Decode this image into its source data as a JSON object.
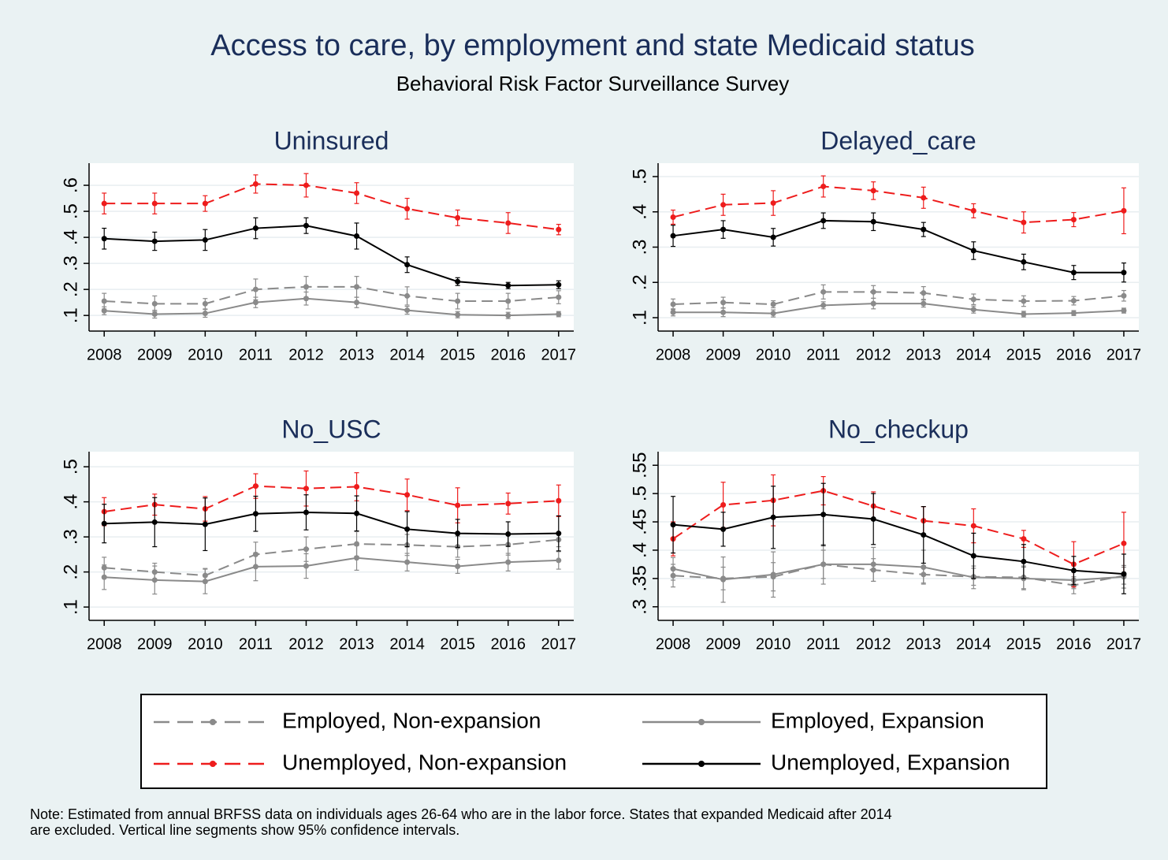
{
  "title": "Access to care, by employment and state Medicaid status",
  "subtitle": "Behavioral Risk Factor Surveillance Survey",
  "note": [
    "Note: Estimated from annual BRFSS data on individuals ages 26-64 who are in the labor force. States that expanded Medicaid after 2014",
    "are excluded. Vertical line segments show 95% confidence intervals."
  ],
  "legend": [
    {
      "name": "Employed, Non-expansion",
      "color": "#8a8a8a",
      "dashed": true
    },
    {
      "name": "Employed, Expansion",
      "color": "#8a8a8a",
      "dashed": false
    },
    {
      "name": "Unemployed, Non-expansion",
      "color": "#ee1c1c",
      "dashed": true
    },
    {
      "name": "Unemployed, Expansion",
      "color": "#000000",
      "dashed": false
    }
  ],
  "chart_data": [
    {
      "type": "line",
      "title": "Uninsured",
      "x": [
        2008,
        2009,
        2010,
        2011,
        2012,
        2013,
        2014,
        2015,
        2016,
        2017
      ],
      "xlim": [
        2007.7,
        2017.3
      ],
      "xticks": [
        2008,
        2009,
        2010,
        2011,
        2012,
        2013,
        2014,
        2015,
        2016,
        2017
      ],
      "ylim": [
        0.04,
        0.685
      ],
      "yticks": [
        {
          "value": 0.1,
          "label": ".1"
        },
        {
          "value": 0.2,
          "label": ".2"
        },
        {
          "value": 0.3,
          "label": ".3"
        },
        {
          "value": 0.4,
          "label": ".4"
        },
        {
          "value": 0.5,
          "label": ".5"
        },
        {
          "value": 0.6,
          "label": ".6"
        }
      ],
      "grid": true,
      "series": [
        {
          "values": [
            0.155,
            0.145,
            0.145,
            0.2,
            0.21,
            0.21,
            0.175,
            0.155,
            0.155,
            0.17
          ],
          "errors": [
            0.03,
            0.03,
            0.02,
            0.04,
            0.04,
            0.04,
            0.035,
            0.03,
            0.03,
            0.025
          ]
        },
        {
          "values": [
            0.118,
            0.105,
            0.108,
            0.15,
            0.165,
            0.15,
            0.12,
            0.103,
            0.1,
            0.105
          ],
          "errors": [
            0.015,
            0.015,
            0.015,
            0.02,
            0.025,
            0.02,
            0.015,
            0.012,
            0.012,
            0.01
          ]
        },
        {
          "values": [
            0.53,
            0.53,
            0.53,
            0.605,
            0.6,
            0.57,
            0.51,
            0.475,
            0.455,
            0.43
          ],
          "errors": [
            0.04,
            0.04,
            0.03,
            0.035,
            0.045,
            0.04,
            0.04,
            0.03,
            0.04,
            0.02
          ]
        },
        {
          "values": [
            0.395,
            0.385,
            0.39,
            0.435,
            0.445,
            0.405,
            0.295,
            0.23,
            0.215,
            0.218
          ],
          "errors": [
            0.04,
            0.035,
            0.04,
            0.04,
            0.03,
            0.05,
            0.03,
            0.015,
            0.012,
            0.015
          ]
        }
      ]
    },
    {
      "type": "line",
      "title": "Delayed_care",
      "x": [
        2008,
        2009,
        2010,
        2011,
        2012,
        2013,
        2014,
        2015,
        2016,
        2017
      ],
      "xlim": [
        2007.7,
        2017.3
      ],
      "xticks": [
        2008,
        2009,
        2010,
        2011,
        2012,
        2013,
        2014,
        2015,
        2016,
        2017
      ],
      "ylim": [
        0.062,
        0.538
      ],
      "yticks": [
        {
          "value": 0.1,
          "label": ".1"
        },
        {
          "value": 0.2,
          "label": ".2"
        },
        {
          "value": 0.3,
          "label": ".3"
        },
        {
          "value": 0.4,
          "label": ".4"
        },
        {
          "value": 0.5,
          "label": ".5"
        }
      ],
      "grid": true,
      "series": [
        {
          "values": [
            0.138,
            0.143,
            0.138,
            0.173,
            0.173,
            0.17,
            0.152,
            0.147,
            0.148,
            0.162
          ],
          "errors": [
            0.015,
            0.015,
            0.01,
            0.02,
            0.018,
            0.018,
            0.015,
            0.015,
            0.012,
            0.015
          ]
        },
        {
          "values": [
            0.115,
            0.115,
            0.112,
            0.135,
            0.14,
            0.14,
            0.123,
            0.11,
            0.113,
            0.12
          ],
          "errors": [
            0.01,
            0.012,
            0.01,
            0.01,
            0.015,
            0.01,
            0.01,
            0.008,
            0.007,
            0.007
          ]
        },
        {
          "values": [
            0.385,
            0.42,
            0.425,
            0.472,
            0.46,
            0.44,
            0.403,
            0.37,
            0.378,
            0.403
          ],
          "errors": [
            0.02,
            0.03,
            0.035,
            0.03,
            0.025,
            0.03,
            0.02,
            0.03,
            0.02,
            0.065
          ]
        },
        {
          "values": [
            0.332,
            0.35,
            0.328,
            0.375,
            0.372,
            0.35,
            0.29,
            0.258,
            0.228,
            0.228
          ],
          "errors": [
            0.03,
            0.025,
            0.025,
            0.022,
            0.025,
            0.02,
            0.025,
            0.022,
            0.02,
            0.027
          ]
        }
      ]
    },
    {
      "type": "line",
      "title": "No_USC",
      "x": [
        2008,
        2009,
        2010,
        2011,
        2012,
        2013,
        2014,
        2015,
        2016,
        2017
      ],
      "xlim": [
        2007.7,
        2017.3
      ],
      "xticks": [
        2008,
        2009,
        2010,
        2011,
        2012,
        2013,
        2014,
        2015,
        2016,
        2017
      ],
      "ylim": [
        0.062,
        0.543
      ],
      "yticks": [
        {
          "value": 0.1,
          "label": ".1"
        },
        {
          "value": 0.2,
          "label": ".2"
        },
        {
          "value": 0.3,
          "label": ".3"
        },
        {
          "value": 0.4,
          "label": ".4"
        },
        {
          "value": 0.5,
          "label": ".5"
        }
      ],
      "grid": true,
      "series": [
        {
          "values": [
            0.212,
            0.2,
            0.19,
            0.25,
            0.265,
            0.28,
            0.277,
            0.272,
            0.278,
            0.292
          ],
          "errors": [
            0.03,
            0.025,
            0.02,
            0.035,
            0.035,
            0.035,
            0.03,
            0.03,
            0.03,
            0.02
          ]
        },
        {
          "values": [
            0.185,
            0.177,
            0.173,
            0.215,
            0.217,
            0.24,
            0.228,
            0.216,
            0.228,
            0.233
          ],
          "errors": [
            0.035,
            0.04,
            0.035,
            0.04,
            0.035,
            0.035,
            0.025,
            0.02,
            0.025,
            0.025
          ]
        },
        {
          "values": [
            0.372,
            0.392,
            0.38,
            0.445,
            0.438,
            0.443,
            0.42,
            0.39,
            0.395,
            0.403
          ],
          "errors": [
            0.04,
            0.03,
            0.035,
            0.035,
            0.05,
            0.04,
            0.045,
            0.05,
            0.03,
            0.045
          ]
        },
        {
          "values": [
            0.338,
            0.342,
            0.336,
            0.366,
            0.37,
            0.367,
            0.322,
            0.31,
            0.308,
            0.31
          ],
          "errors": [
            0.055,
            0.07,
            0.075,
            0.05,
            0.05,
            0.05,
            0.05,
            0.04,
            0.035,
            0.05
          ]
        }
      ]
    },
    {
      "type": "line",
      "title": "No_checkup",
      "x": [
        2008,
        2009,
        2010,
        2011,
        2012,
        2013,
        2014,
        2015,
        2016,
        2017
      ],
      "xlim": [
        2007.7,
        2017.3
      ],
      "xticks": [
        2008,
        2009,
        2010,
        2011,
        2012,
        2013,
        2014,
        2015,
        2016,
        2017
      ],
      "ylim": [
        0.276,
        0.574
      ],
      "yticks": [
        {
          "value": 0.3,
          "label": ".3"
        },
        {
          "value": 0.35,
          "label": ".35"
        },
        {
          "value": 0.4,
          "label": ".4"
        },
        {
          "value": 0.45,
          "label": ".45"
        },
        {
          "value": 0.5,
          "label": ".5"
        },
        {
          "value": 0.55,
          "label": ".55"
        }
      ],
      "grid": true,
      "series": [
        {
          "values": [
            0.355,
            0.35,
            0.353,
            0.375,
            0.365,
            0.357,
            0.353,
            0.352,
            0.338,
            0.355
          ],
          "errors": [
            0.02,
            0.02,
            0.025,
            0.025,
            0.02,
            0.015,
            0.015,
            0.02,
            0.015,
            0.015
          ]
        },
        {
          "values": [
            0.367,
            0.348,
            0.357,
            0.375,
            0.375,
            0.37,
            0.352,
            0.35,
            0.347,
            0.353
          ],
          "errors": [
            0.02,
            0.04,
            0.04,
            0.035,
            0.03,
            0.03,
            0.02,
            0.02,
            0.015,
            0.02
          ]
        },
        {
          "values": [
            0.42,
            0.48,
            0.488,
            0.505,
            0.478,
            0.452,
            0.443,
            0.42,
            0.375,
            0.412
          ],
          "errors": [
            0.03,
            0.04,
            0.045,
            0.025,
            0.025,
            0.025,
            0.03,
            0.015,
            0.04,
            0.055
          ]
        },
        {
          "values": [
            0.445,
            0.437,
            0.458,
            0.463,
            0.455,
            0.427,
            0.39,
            0.38,
            0.364,
            0.358
          ],
          "errors": [
            0.05,
            0.03,
            0.055,
            0.055,
            0.045,
            0.05,
            0.04,
            0.03,
            0.025,
            0.035
          ]
        }
      ]
    }
  ]
}
